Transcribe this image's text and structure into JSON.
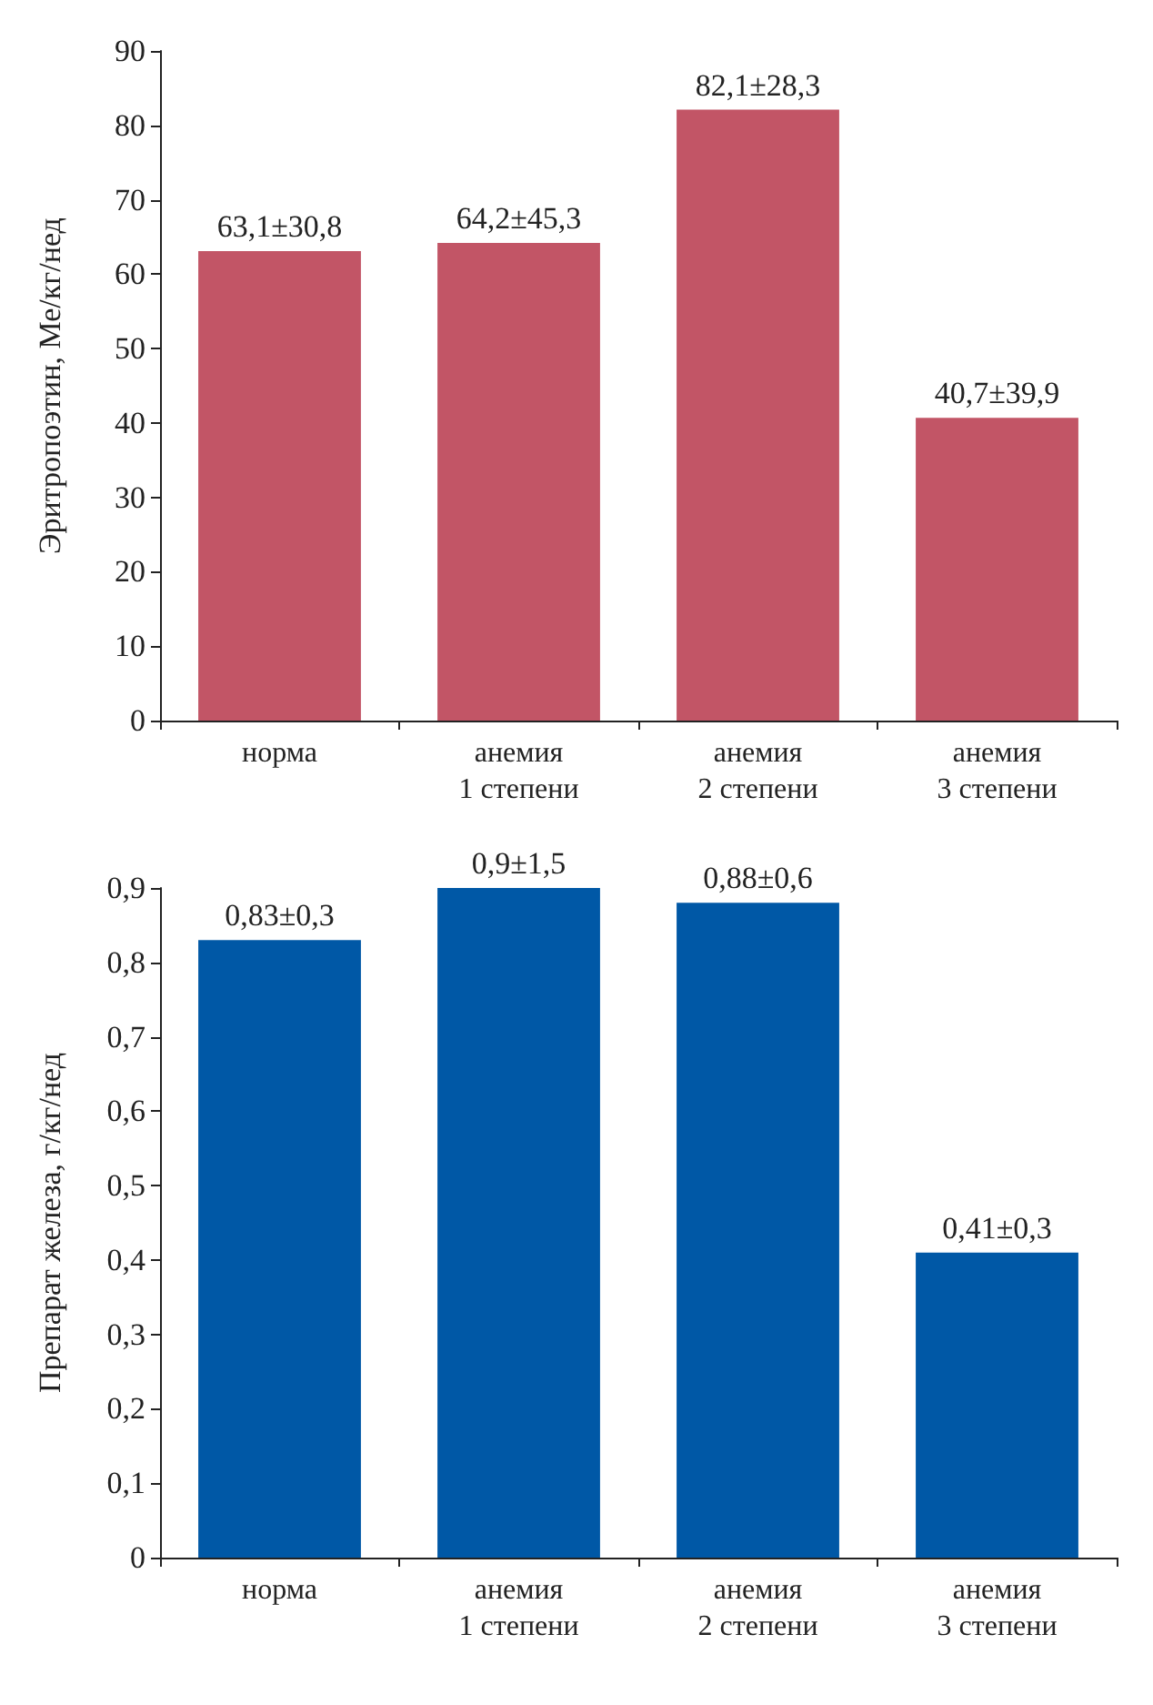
{
  "chart_data": [
    {
      "type": "bar",
      "categories": [
        "норма",
        "анемия\n1 степени",
        "анемия\n2 степени",
        "анемия\n3 степени"
      ],
      "values": [
        63.1,
        64.2,
        82.1,
        40.7
      ],
      "value_labels": [
        "63,1±30,8",
        "64,2±45,3",
        "82,1±28,3",
        "40,7±39,9"
      ],
      "color": "#c25566",
      "ylabel": "Эритропоэтин, Ме/кг/нед",
      "ylim": [
        0,
        90
      ],
      "yticks": [
        0,
        10,
        20,
        30,
        40,
        50,
        60,
        70,
        80,
        90
      ]
    },
    {
      "type": "bar",
      "categories": [
        "норма",
        "анемия\n1 степени",
        "анемия\n2 степени",
        "анемия\n3 степени"
      ],
      "values": [
        0.83,
        0.9,
        0.88,
        0.41
      ],
      "value_labels": [
        "0,83±0,3",
        "0,9±1,5",
        "0,88±0,6",
        "0,41±0,3"
      ],
      "color": "#0058a6",
      "ylabel": "Препарат железа, г/кг/нед",
      "ylim": [
        0,
        0.9
      ],
      "yticks": [
        0,
        {
          "value": 0.1,
          "label": "0,1"
        },
        {
          "value": 0.2,
          "label": "0,2"
        },
        {
          "value": 0.3,
          "label": "0,3"
        },
        {
          "value": 0.4,
          "label": "0,4"
        },
        {
          "value": 0.5,
          "label": "0,5"
        },
        {
          "value": 0.6,
          "label": "0,6"
        },
        {
          "value": 0.7,
          "label": "0,7"
        },
        {
          "value": 0.8,
          "label": "0,8"
        },
        {
          "value": 0.9,
          "label": "0,9"
        }
      ]
    }
  ]
}
